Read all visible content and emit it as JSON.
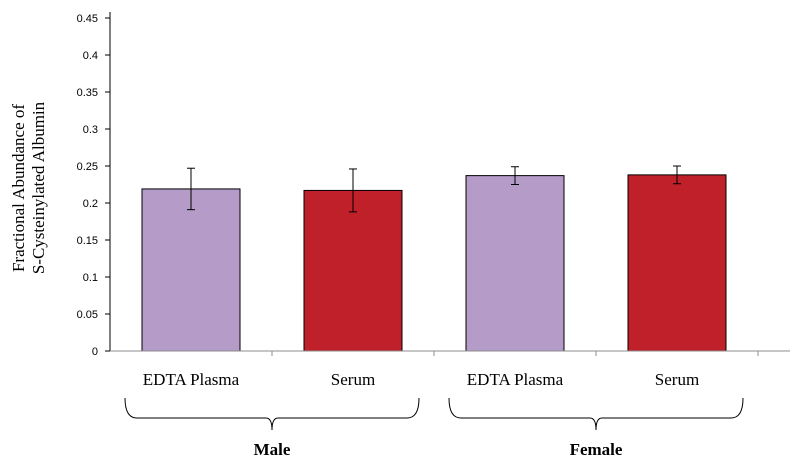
{
  "chart_data": {
    "type": "bar",
    "ylabel": [
      "Fractional Abundance of",
      "S-Cysteinylated Albumin"
    ],
    "ylim": [
      0,
      0.45
    ],
    "yticks": [
      "0",
      "0.05",
      "0.1",
      "0.15",
      "0.2",
      "0.25",
      "0.3",
      "0.35",
      "0.4",
      "0.45"
    ],
    "categories": [
      "EDTA Plasma",
      "Serum",
      "EDTA Plasma",
      "Serum"
    ],
    "groups": [
      {
        "label": "Male",
        "categories": [
          0,
          1
        ]
      },
      {
        "label": "Female",
        "categories": [
          2,
          3
        ]
      }
    ],
    "values": [
      0.219,
      0.217,
      0.237,
      0.238
    ],
    "errors": [
      0.028,
      0.029,
      0.012,
      0.012
    ],
    "colors": [
      "#b49bc8",
      "#c0202a"
    ],
    "grid": false
  }
}
